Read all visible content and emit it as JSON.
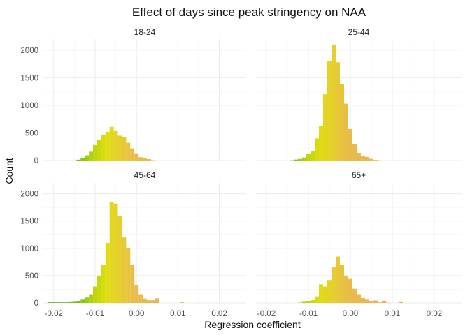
{
  "chart_data": {
    "type": "bar",
    "subtype": "faceted histogram",
    "title": "Effect of days since peak stringency on NAA",
    "xlabel": "Regression coefficient",
    "ylabel": "Count",
    "xlim": [
      -0.0225,
      0.0265
    ],
    "ylim": [
      0,
      2200
    ],
    "x_ticks": [
      -0.02,
      -0.01,
      0.0,
      0.01,
      0.02
    ],
    "x_tick_labels": [
      "-0.02",
      "-0.01",
      "0.00",
      "0.01",
      "0.02"
    ],
    "y_ticks": [
      0,
      500,
      1000,
      1500,
      2000
    ],
    "y_tick_labels": [
      "0",
      "500",
      "1000",
      "1500",
      "2000"
    ],
    "grid": true,
    "legend": "none",
    "fill_gradient": {
      "description": "bars colored by bin center: green -> yellow -> orange",
      "stops": [
        {
          "x": -0.0215,
          "color": "#4aa51d"
        },
        {
          "x": -0.0135,
          "color": "#7ec21a"
        },
        {
          "x": -0.0105,
          "color": "#b6d411"
        },
        {
          "x": -0.0075,
          "color": "#dede0d"
        },
        {
          "x": -0.0045,
          "color": "#e6cf2c"
        },
        {
          "x": -0.0005,
          "color": "#e9bc4b"
        },
        {
          "x": 0.0135,
          "color": "#e8ad5b"
        },
        {
          "x": 0.0255,
          "color": "#e6a560"
        }
      ]
    },
    "bin_width": 0.001,
    "bin_start": -0.0215,
    "panels": [
      {
        "name": "18-24",
        "values": [
          0,
          0,
          0,
          0,
          0,
          0,
          0,
          15,
          40,
          95,
          160,
          280,
          380,
          470,
          520,
          610,
          540,
          450,
          430,
          320,
          220,
          130,
          60,
          40,
          25,
          6,
          0,
          0,
          0,
          0,
          0,
          0,
          0,
          0,
          0,
          0,
          0,
          0,
          0,
          0,
          0,
          0,
          0,
          0,
          0,
          0,
          0,
          0
        ]
      },
      {
        "name": "25-44",
        "values": [
          0,
          0,
          0,
          0,
          0,
          0,
          0,
          4,
          18,
          28,
          55,
          120,
          170,
          400,
          620,
          1200,
          1800,
          2100,
          1780,
          1380,
          1030,
          570,
          300,
          140,
          85,
          65,
          30,
          10,
          3,
          0,
          0,
          0,
          0,
          0,
          0,
          0,
          0,
          0,
          0,
          0,
          0,
          0,
          0,
          0,
          0,
          0,
          0,
          0
        ]
      },
      {
        "name": "45-64",
        "values": [
          10,
          10,
          10,
          10,
          10,
          15,
          20,
          30,
          60,
          100,
          160,
          300,
          500,
          700,
          1100,
          1850,
          1820,
          1600,
          1200,
          1000,
          700,
          330,
          160,
          80,
          50,
          50,
          85,
          0,
          0,
          0,
          0,
          0,
          10,
          0,
          0,
          0,
          0,
          0,
          0,
          0,
          0,
          0,
          0,
          0,
          0,
          0,
          0,
          0
        ]
      },
      {
        "name": "65+",
        "values": [
          0,
          0,
          0,
          0,
          0,
          0,
          0,
          0,
          0,
          6,
          20,
          35,
          50,
          120,
          340,
          300,
          420,
          660,
          850,
          700,
          500,
          440,
          260,
          160,
          90,
          60,
          25,
          45,
          10,
          40,
          5,
          0,
          0,
          15,
          0,
          0,
          0,
          0,
          0,
          0,
          0,
          0,
          0,
          0,
          0,
          0,
          0,
          0
        ]
      }
    ]
  }
}
